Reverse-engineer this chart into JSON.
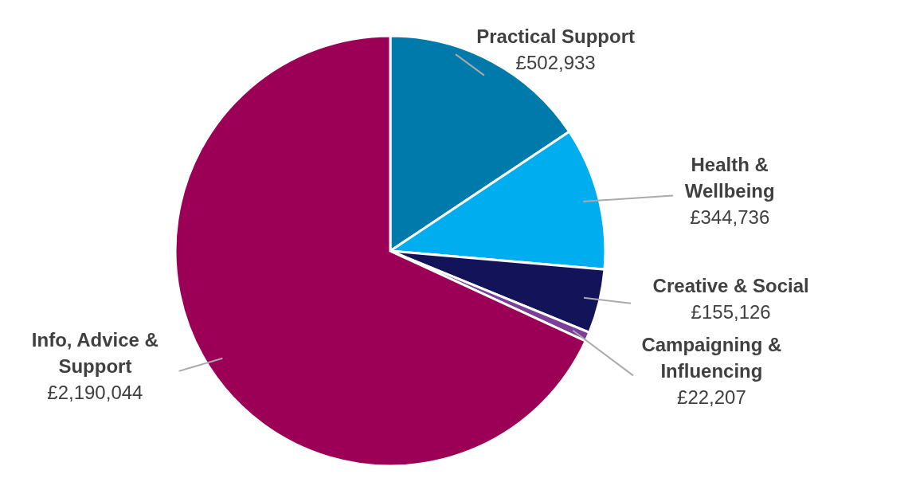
{
  "chart_data": {
    "type": "pie",
    "categories": [
      "Practical Support",
      "Health & Wellbeing",
      "Creative & Social",
      "Campaigning & Influencing",
      "Info, Advice & Support"
    ],
    "values": [
      502933,
      344736,
      155126,
      22207,
      2190044
    ],
    "colors": [
      "#007aab",
      "#00aeef",
      "#13135a",
      "#7b3f98",
      "#9b0056"
    ],
    "value_labels": [
      "£502,933",
      "£344,736",
      "£155,126",
      "£22,207",
      "£2,190,044"
    ]
  }
}
